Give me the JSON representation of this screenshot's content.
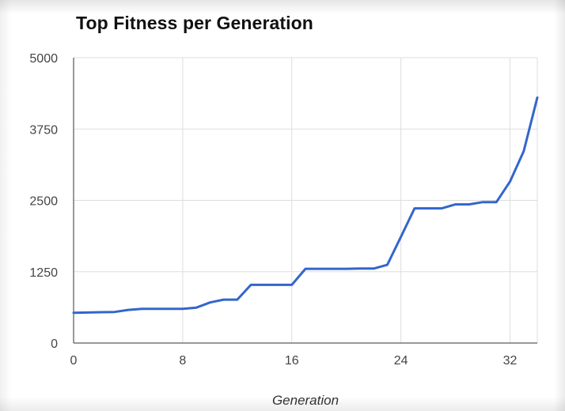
{
  "chart_data": {
    "type": "line",
    "title": "Top Fitness per Generation",
    "xlabel": "Generation",
    "ylabel": "",
    "xlim": [
      0,
      34
    ],
    "ylim": [
      0,
      5000
    ],
    "x_ticks": [
      0,
      8,
      16,
      24,
      32
    ],
    "y_ticks": [
      0,
      1250,
      2500,
      3750,
      5000
    ],
    "grid": true,
    "legend": "none",
    "series": [
      {
        "color": "#3366cc",
        "x": [
          0,
          1,
          2,
          3,
          4,
          5,
          6,
          7,
          8,
          9,
          10,
          11,
          12,
          13,
          14,
          15,
          16,
          17,
          18,
          19,
          20,
          21,
          22,
          23,
          24,
          25,
          26,
          27,
          28,
          29,
          30,
          31,
          32,
          33,
          34
        ],
        "values": [
          530,
          535,
          540,
          545,
          580,
          600,
          600,
          600,
          600,
          620,
          710,
          760,
          760,
          1020,
          1020,
          1020,
          1020,
          1300,
          1300,
          1300,
          1300,
          1305,
          1305,
          1370,
          1860,
          2360,
          2360,
          2360,
          2430,
          2430,
          2470,
          2470,
          2830,
          3360,
          4300
        ]
      }
    ]
  }
}
